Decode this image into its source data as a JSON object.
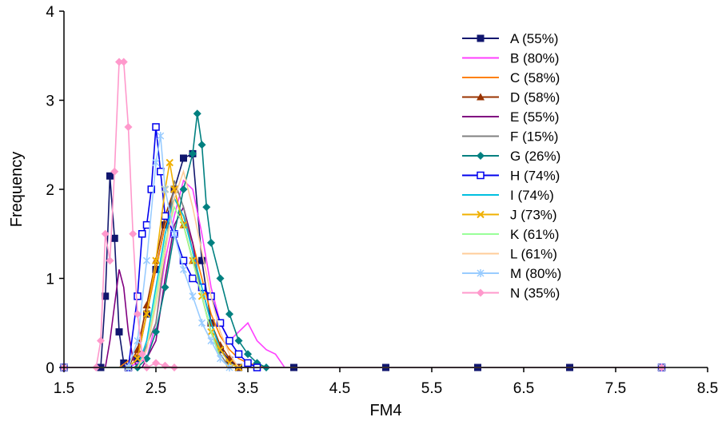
{
  "chart_data": {
    "type": "line",
    "title": "",
    "xlabel": "FM4",
    "ylabel": "Frequency",
    "xlim": [
      1.5,
      8.5
    ],
    "ylim": [
      0,
      4
    ],
    "xticks": [
      "1.5",
      "2.5",
      "3.5",
      "4.5",
      "5.5",
      "6.5",
      "7.5",
      "8.5"
    ],
    "yticks": [
      "0",
      "1",
      "2",
      "3",
      "4"
    ],
    "grid": false,
    "legend_position": "top-right",
    "series": [
      {
        "name": "A (55%)",
        "color": "#10166e",
        "marker": "square-filled",
        "x": [
          1.5,
          1.9,
          1.95,
          2.0,
          2.05,
          2.1,
          2.15,
          2.2,
          2.3,
          2.4,
          2.5,
          2.6,
          2.7,
          2.8,
          2.9,
          3.0,
          3.1,
          3.2,
          3.3,
          3.4,
          4.0,
          5.0,
          6.0,
          7.0,
          8.0
        ],
        "y": [
          0,
          0,
          0.8,
          2.15,
          1.45,
          0.4,
          0.05,
          0,
          0.1,
          0.6,
          1.1,
          1.6,
          2.0,
          2.35,
          2.4,
          1.2,
          0.5,
          0.2,
          0.08,
          0,
          0,
          0,
          0,
          0,
          0
        ]
      },
      {
        "name": "B (80%)",
        "color": "#ff40ff",
        "marker": "none",
        "x": [
          1.5,
          2.2,
          2.4,
          2.5,
          2.6,
          2.7,
          2.8,
          2.9,
          3.0,
          3.1,
          3.2,
          3.3,
          3.4,
          3.5,
          3.6,
          3.7,
          3.8,
          3.9,
          4.0,
          8.0
        ],
        "y": [
          0,
          0,
          0.1,
          0.5,
          1.2,
          1.7,
          2.1,
          2.0,
          1.5,
          0.9,
          0.5,
          0.3,
          0.4,
          0.5,
          0.3,
          0.2,
          0.15,
          0,
          0,
          0
        ]
      },
      {
        "name": "C (58%)",
        "color": "#ff8000",
        "marker": "none",
        "x": [
          1.5,
          2.1,
          2.3,
          2.4,
          2.5,
          2.6,
          2.7,
          2.8,
          2.9,
          3.0,
          3.1,
          3.2,
          3.3,
          3.4,
          3.5,
          3.7,
          8.0
        ],
        "y": [
          0,
          0,
          0.15,
          0.6,
          1.1,
          1.6,
          1.9,
          1.7,
          1.4,
          1.0,
          0.6,
          0.35,
          0.2,
          0.1,
          0.05,
          0,
          0
        ]
      },
      {
        "name": "D (58%)",
        "color": "#993300",
        "marker": "triangle",
        "x": [
          1.5,
          2.2,
          2.3,
          2.4,
          2.5,
          2.6,
          2.7,
          2.8,
          2.9,
          3.0,
          3.1,
          3.2,
          3.3,
          3.4,
          8.0
        ],
        "y": [
          0,
          0,
          0.2,
          0.7,
          1.2,
          1.7,
          2.0,
          1.6,
          1.2,
          0.9,
          0.5,
          0.25,
          0.1,
          0,
          0
        ]
      },
      {
        "name": "E (55%)",
        "color": "#800080",
        "marker": "none",
        "x": [
          1.5,
          1.95,
          2.0,
          2.05,
          2.1,
          2.15,
          2.2,
          2.25,
          2.3,
          2.35,
          2.5,
          2.6,
          2.7,
          2.8,
          2.9,
          3.0,
          3.1,
          3.2,
          3.3,
          8.0
        ],
        "y": [
          0,
          0,
          0.3,
          0.7,
          1.1,
          0.9,
          0.4,
          0.1,
          0,
          0,
          0.3,
          1.0,
          1.6,
          1.8,
          1.4,
          0.8,
          0.4,
          0.1,
          0,
          0
        ]
      },
      {
        "name": "F (15%)",
        "color": "#808080",
        "marker": "none",
        "x": [
          1.5,
          2.3,
          2.5,
          2.6,
          2.7,
          2.8,
          2.9,
          3.0,
          3.1,
          3.2,
          3.3,
          8.0
        ],
        "y": [
          0,
          0,
          0.5,
          1.3,
          2.1,
          1.8,
          1.3,
          0.8,
          0.4,
          0.15,
          0,
          0
        ]
      },
      {
        "name": "G (26%)",
        "color": "#008080",
        "marker": "diamond",
        "x": [
          1.5,
          2.3,
          2.4,
          2.5,
          2.6,
          2.7,
          2.8,
          2.9,
          2.95,
          3.0,
          3.05,
          3.1,
          3.2,
          3.3,
          3.4,
          3.5,
          3.6,
          3.7,
          8.0
        ],
        "y": [
          0,
          0,
          0.1,
          0.4,
          0.9,
          1.5,
          2.0,
          2.4,
          2.85,
          2.5,
          1.8,
          1.4,
          1.0,
          0.6,
          0.3,
          0.15,
          0.05,
          0,
          0
        ]
      },
      {
        "name": "H (74%)",
        "color": "#0000ee",
        "marker": "square-open",
        "x": [
          1.5,
          2.2,
          2.3,
          2.35,
          2.4,
          2.45,
          2.5,
          2.55,
          2.6,
          2.7,
          2.8,
          2.9,
          3.0,
          3.1,
          3.2,
          3.3,
          3.4,
          3.5,
          3.6,
          8.0
        ],
        "y": [
          0,
          0,
          0.8,
          1.5,
          1.6,
          2.0,
          2.7,
          2.2,
          1.7,
          1.5,
          1.2,
          1.0,
          0.9,
          0.8,
          0.5,
          0.3,
          0.15,
          0.05,
          0,
          0
        ]
      },
      {
        "name": "I (74%)",
        "color": "#00c0e0",
        "marker": "none",
        "x": [
          1.5,
          2.3,
          2.4,
          2.5,
          2.6,
          2.7,
          2.8,
          2.9,
          3.0,
          3.1,
          3.2,
          3.3,
          3.4,
          8.0
        ],
        "y": [
          0,
          0,
          0.3,
          0.9,
          1.5,
          1.9,
          1.7,
          1.3,
          0.9,
          0.5,
          0.2,
          0.05,
          0,
          0
        ]
      },
      {
        "name": "J (73%)",
        "color": "#f0b000",
        "marker": "x",
        "x": [
          1.5,
          2.2,
          2.3,
          2.4,
          2.5,
          2.6,
          2.65,
          2.7,
          2.8,
          2.9,
          3.0,
          3.1,
          3.2,
          3.3,
          3.4,
          8.0
        ],
        "y": [
          0,
          0,
          0.1,
          0.6,
          1.2,
          2.0,
          2.3,
          2.0,
          1.6,
          1.2,
          0.8,
          0.4,
          0.2,
          0.05,
          0,
          0
        ]
      },
      {
        "name": "K (61%)",
        "color": "#99ff99",
        "marker": "none",
        "x": [
          1.5,
          2.3,
          2.4,
          2.5,
          2.6,
          2.7,
          2.8,
          2.9,
          3.0,
          3.1,
          3.2,
          3.3,
          8.0
        ],
        "y": [
          0,
          0,
          0.2,
          0.8,
          1.4,
          1.8,
          1.6,
          1.2,
          0.8,
          0.4,
          0.1,
          0,
          0
        ]
      },
      {
        "name": "L (61%)",
        "color": "#ffcc99",
        "marker": "none",
        "x": [
          1.5,
          2.3,
          2.4,
          2.5,
          2.6,
          2.7,
          2.8,
          2.9,
          3.0,
          3.1,
          3.2,
          3.3,
          3.4,
          8.0
        ],
        "y": [
          0,
          0,
          0.2,
          0.7,
          1.3,
          1.9,
          2.2,
          1.8,
          1.3,
          0.8,
          0.4,
          0.15,
          0,
          0
        ]
      },
      {
        "name": "M (80%)",
        "color": "#99ccff",
        "marker": "asterisk",
        "x": [
          1.5,
          2.2,
          2.3,
          2.4,
          2.5,
          2.55,
          2.6,
          2.7,
          2.8,
          2.9,
          3.0,
          3.1,
          3.2,
          3.3,
          8.0
        ],
        "y": [
          0,
          0,
          0.3,
          1.2,
          2.3,
          2.6,
          2.0,
          1.5,
          1.1,
          0.8,
          0.5,
          0.3,
          0.1,
          0,
          0
        ]
      },
      {
        "name": "N (35%)",
        "color": "#ff99cc",
        "marker": "diamond",
        "x": [
          1.5,
          1.85,
          1.9,
          1.95,
          2.0,
          2.05,
          2.1,
          2.15,
          2.2,
          2.25,
          2.3,
          2.35,
          2.4,
          2.5,
          2.6,
          2.7,
          8.0
        ],
        "y": [
          0,
          0,
          0.3,
          1.5,
          1.2,
          2.2,
          3.43,
          3.43,
          2.7,
          1.5,
          0.6,
          0.15,
          0,
          0.05,
          0.02,
          0,
          0
        ]
      }
    ]
  }
}
